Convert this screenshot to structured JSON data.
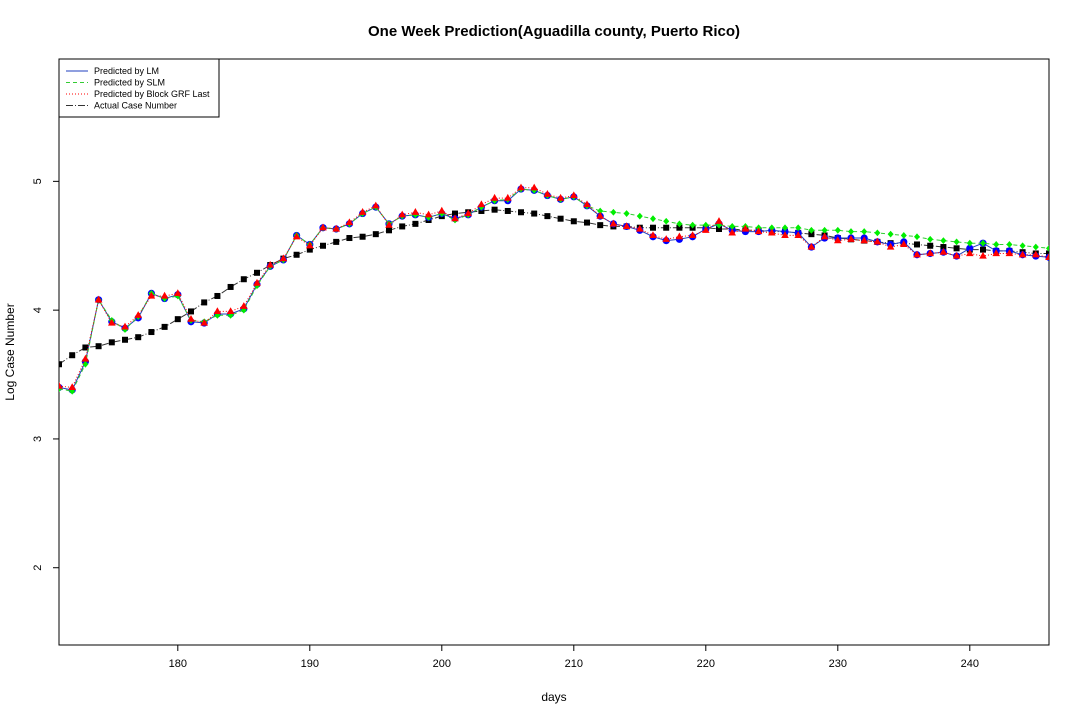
{
  "chart_data": {
    "type": "line",
    "title": "One Week Prediction(Aguadilla county, Puerto Rico)",
    "xlabel": "days",
    "ylabel": "Log Case Number",
    "xlim": [
      171,
      246
    ],
    "ylim": [
      1.4,
      5.95
    ],
    "xticks": [
      180,
      190,
      200,
      210,
      220,
      230,
      240
    ],
    "yticks": [
      2,
      3,
      4,
      5
    ],
    "legend_position": "top-left",
    "x": [
      171,
      172,
      173,
      174,
      175,
      176,
      177,
      178,
      179,
      180,
      181,
      182,
      183,
      184,
      185,
      186,
      187,
      188,
      189,
      190,
      191,
      192,
      193,
      194,
      195,
      196,
      197,
      198,
      199,
      200,
      201,
      202,
      203,
      204,
      205,
      206,
      207,
      208,
      209,
      210,
      211,
      212,
      213,
      214,
      215,
      216,
      217,
      218,
      219,
      220,
      221,
      222,
      223,
      224,
      225,
      226,
      227,
      228,
      229,
      230,
      231,
      232,
      233,
      234,
      235,
      236,
      237,
      238,
      239,
      240,
      241,
      242,
      243,
      244,
      245,
      246
    ],
    "series": [
      {
        "name": "Predicted by LM",
        "line_color": "#1f3fbf",
        "dash": "",
        "marker": "circle",
        "marker_color": "#0000ff",
        "values": [
          3.4,
          3.38,
          3.6,
          4.08,
          3.91,
          3.86,
          3.94,
          4.13,
          4.09,
          4.12,
          3.91,
          3.9,
          3.97,
          3.97,
          4.01,
          4.2,
          4.34,
          4.39,
          4.58,
          4.51,
          4.64,
          4.63,
          4.67,
          4.75,
          4.8,
          4.67,
          4.73,
          4.74,
          4.72,
          4.75,
          4.71,
          4.74,
          4.8,
          4.85,
          4.85,
          4.94,
          4.93,
          4.89,
          4.86,
          4.88,
          4.81,
          4.73,
          4.67,
          4.65,
          4.62,
          4.57,
          4.54,
          4.55,
          4.57,
          4.63,
          4.67,
          4.62,
          4.61,
          4.61,
          4.62,
          4.61,
          4.6,
          4.49,
          4.56,
          4.56,
          4.56,
          4.56,
          4.53,
          4.51,
          4.53,
          4.43,
          4.44,
          4.45,
          4.42,
          4.48,
          4.52,
          4.46,
          4.46,
          4.43,
          4.42,
          4.41
        ]
      },
      {
        "name": "Predicted by SLM",
        "line_color": "#33cc33",
        "dash": "4,3",
        "marker": "diamond",
        "marker_color": "#00ee00",
        "values": [
          3.39,
          3.37,
          3.58,
          4.08,
          3.92,
          3.85,
          3.95,
          4.13,
          4.09,
          4.11,
          3.92,
          3.91,
          3.96,
          3.96,
          4.0,
          4.19,
          4.34,
          4.39,
          4.58,
          4.51,
          4.64,
          4.63,
          4.67,
          4.75,
          4.8,
          4.67,
          4.73,
          4.74,
          4.72,
          4.75,
          4.7,
          4.74,
          4.8,
          4.85,
          4.86,
          4.94,
          4.93,
          4.89,
          4.86,
          4.88,
          4.81,
          4.77,
          4.76,
          4.75,
          4.73,
          4.71,
          4.69,
          4.67,
          4.66,
          4.66,
          4.66,
          4.65,
          4.65,
          4.64,
          4.64,
          4.64,
          4.64,
          4.62,
          4.62,
          4.62,
          4.61,
          4.61,
          4.6,
          4.59,
          4.58,
          4.57,
          4.55,
          4.54,
          4.53,
          4.52,
          4.52,
          4.51,
          4.51,
          4.5,
          4.49,
          4.48
        ]
      },
      {
        "name": "Predicted by Block GRF Last",
        "line_color": "#ff0000",
        "dash": "1,2",
        "marker": "triangle",
        "marker_color": "#ff0000",
        "values": [
          3.41,
          3.4,
          3.62,
          4.08,
          3.9,
          3.87,
          3.96,
          4.11,
          4.11,
          4.13,
          3.93,
          3.9,
          3.99,
          3.99,
          4.03,
          4.21,
          4.35,
          4.4,
          4.57,
          4.5,
          4.64,
          4.63,
          4.68,
          4.76,
          4.81,
          4.66,
          4.74,
          4.76,
          4.74,
          4.77,
          4.71,
          4.75,
          4.82,
          4.87,
          4.87,
          4.95,
          4.95,
          4.9,
          4.87,
          4.89,
          4.82,
          4.73,
          4.67,
          4.65,
          4.63,
          4.58,
          4.55,
          4.57,
          4.58,
          4.62,
          4.69,
          4.6,
          4.63,
          4.61,
          4.6,
          4.58,
          4.58,
          4.49,
          4.57,
          4.54,
          4.55,
          4.54,
          4.53,
          4.49,
          4.51,
          4.43,
          4.44,
          4.45,
          4.42,
          4.44,
          4.42,
          4.44,
          4.44,
          4.43,
          4.43,
          4.41
        ]
      },
      {
        "name": "Actual Case Number",
        "line_color": "#333333",
        "dash": "7,2,1,2",
        "marker": "square",
        "marker_color": "#000000",
        "values": [
          3.58,
          3.65,
          3.71,
          3.72,
          3.75,
          3.77,
          3.79,
          3.83,
          3.87,
          3.93,
          3.99,
          4.06,
          4.11,
          4.18,
          4.24,
          4.29,
          4.35,
          4.4,
          4.43,
          4.47,
          4.5,
          4.53,
          4.56,
          4.57,
          4.59,
          4.62,
          4.65,
          4.67,
          4.7,
          4.73,
          4.75,
          4.76,
          4.77,
          4.78,
          4.77,
          4.76,
          4.75,
          4.73,
          4.71,
          4.69,
          4.68,
          4.66,
          4.65,
          4.65,
          4.64,
          4.64,
          4.64,
          4.64,
          4.64,
          4.64,
          4.63,
          4.63,
          4.62,
          4.62,
          4.61,
          4.61,
          4.6,
          4.59,
          4.58,
          4.56,
          4.55,
          4.54,
          4.53,
          4.52,
          4.52,
          4.51,
          4.5,
          4.49,
          4.48,
          4.47,
          4.47,
          4.46,
          4.46,
          4.45,
          4.44,
          4.44
        ]
      }
    ]
  }
}
